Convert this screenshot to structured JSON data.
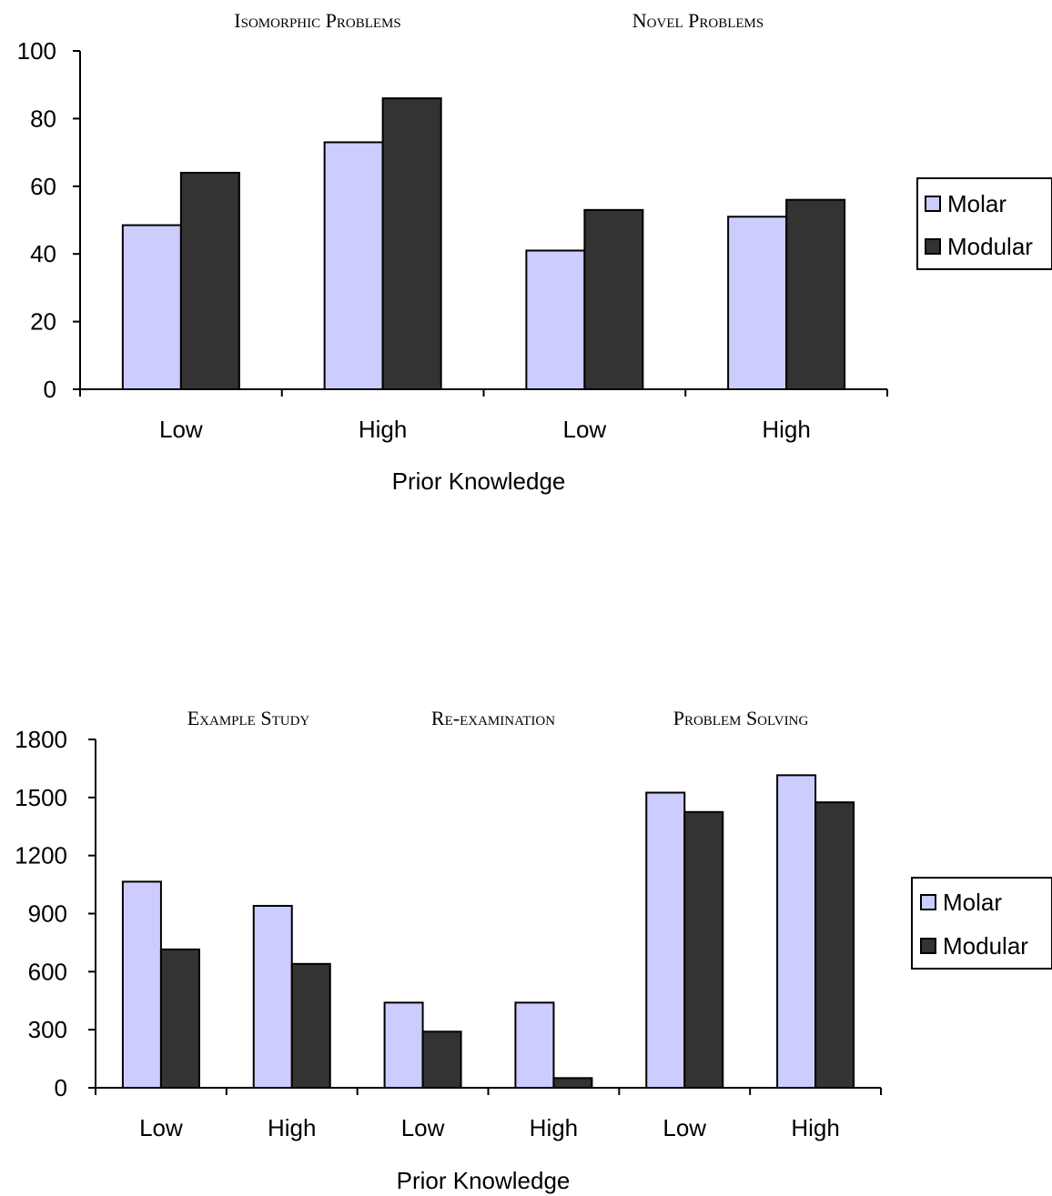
{
  "colors": {
    "molar": "#ccccff",
    "modular": "#333333",
    "axis": "#000000"
  },
  "chart_data": [
    {
      "type": "bar",
      "group_titles": [
        "Isomorphic Problems",
        "Novel Problems"
      ],
      "categories": [
        "Low",
        "High",
        "Low",
        "High"
      ],
      "series": [
        {
          "name": "Molar",
          "values": [
            48.5,
            73,
            41,
            51
          ]
        },
        {
          "name": "Modular",
          "values": [
            64,
            86,
            53,
            56
          ]
        }
      ],
      "xlabel": "Prior Knowledge",
      "ylabel": "",
      "ylim": [
        0,
        100
      ],
      "yticks": [
        0,
        20,
        40,
        60,
        80,
        100
      ],
      "legend": "right",
      "grid": false
    },
    {
      "type": "bar",
      "group_titles": [
        "Example Study",
        "Re-examination",
        "Problem Solving"
      ],
      "categories": [
        "Low",
        "High",
        "Low",
        "High",
        "Low",
        "High"
      ],
      "series": [
        {
          "name": "Molar",
          "values": [
            1065,
            940,
            440,
            440,
            1525,
            1615
          ]
        },
        {
          "name": "Modular",
          "values": [
            715,
            640,
            290,
            50,
            1425,
            1475
          ]
        }
      ],
      "xlabel": "Prior Knowledge",
      "ylabel": "",
      "ylim": [
        0,
        1800
      ],
      "yticks": [
        0,
        300,
        600,
        900,
        1200,
        1500,
        1800
      ],
      "legend": "right",
      "grid": false
    }
  ]
}
